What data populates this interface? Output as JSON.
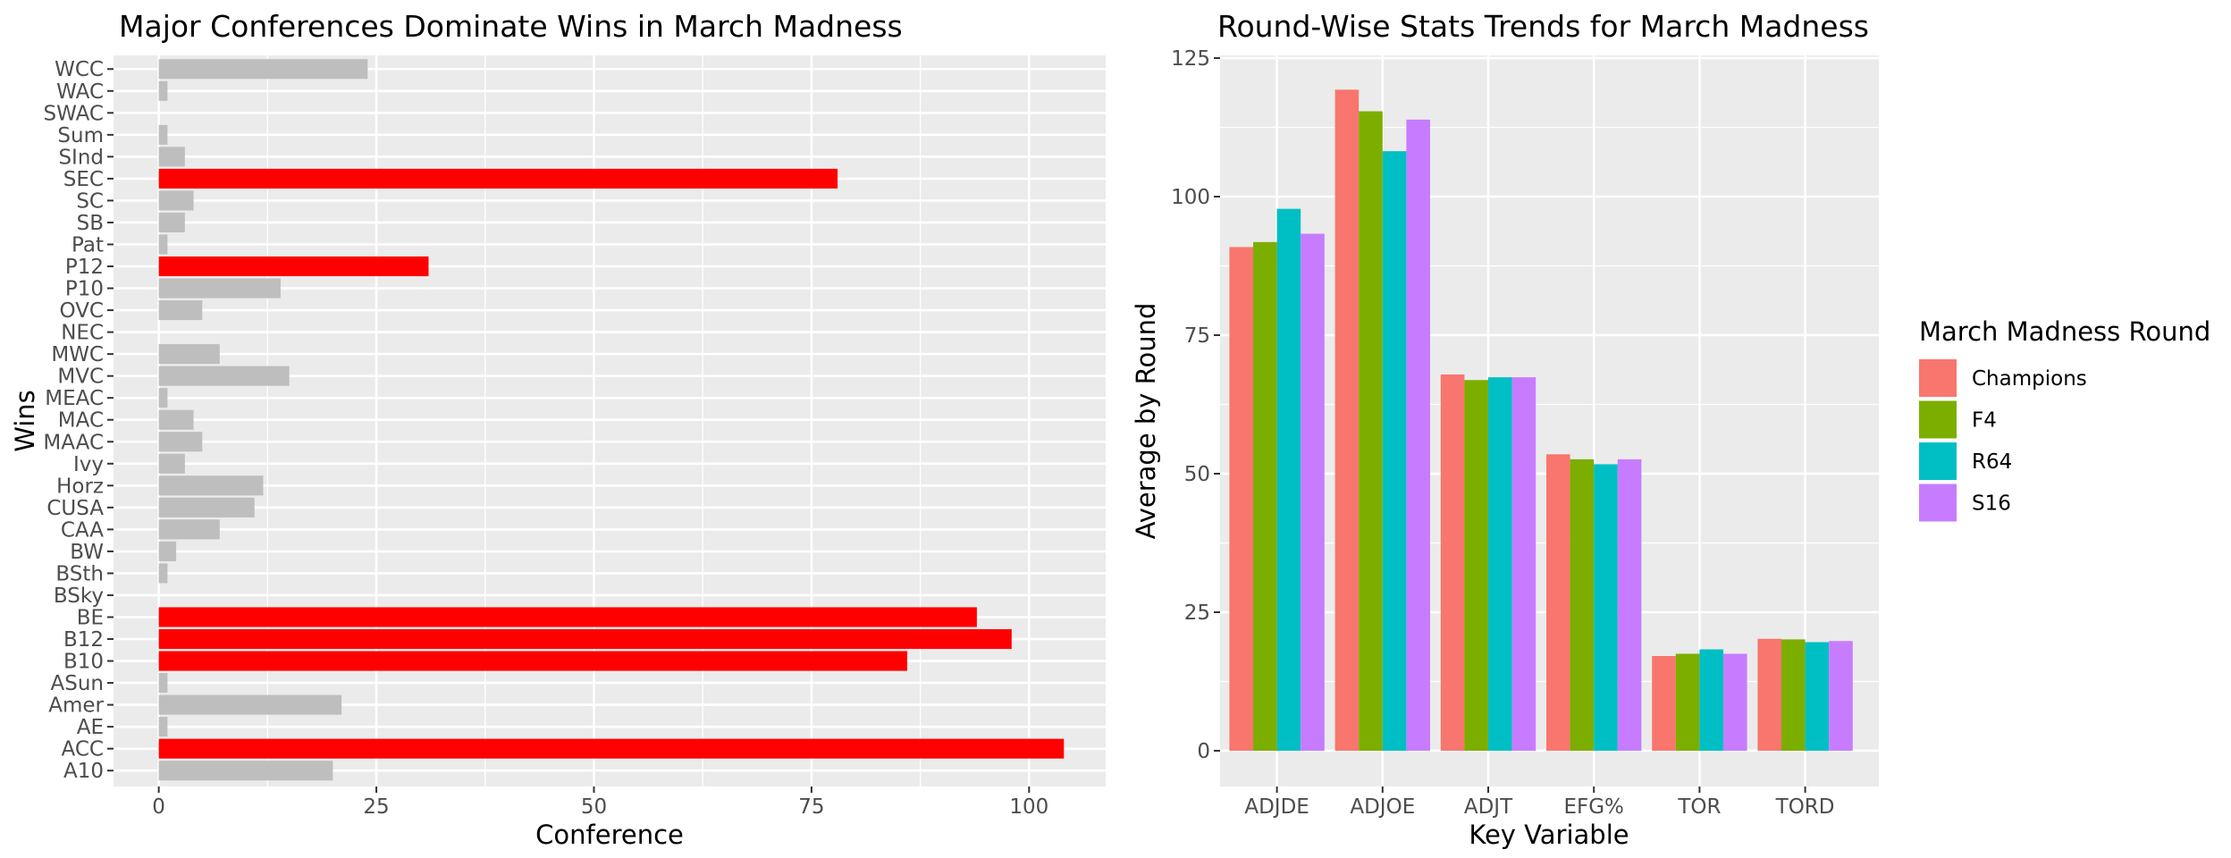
{
  "colors": {
    "panel_bg": "#EBEBEB",
    "grid": "#FFFFFF",
    "highlight": "#FF0000",
    "muted": "#BEBEBE",
    "text": "#000000",
    "tick_text": "#4D4D4D"
  },
  "chart_data": [
    {
      "type": "bar",
      "orientation": "horizontal",
      "title": "Major Conferences Dominate Wins in March Madness",
      "xlabel": "Conference",
      "ylabel": "Wins",
      "xlim": [
        0,
        108
      ],
      "xticks": [
        0,
        25,
        50,
        75,
        100
      ],
      "grid": true,
      "legend": "none",
      "categories": [
        "A10",
        "ACC",
        "AE",
        "Amer",
        "ASun",
        "B10",
        "B12",
        "BE",
        "BSky",
        "BSth",
        "BW",
        "CAA",
        "CUSA",
        "Horz",
        "Ivy",
        "MAAC",
        "MAC",
        "MEAC",
        "MVC",
        "MWC",
        "NEC",
        "OVC",
        "P10",
        "P12",
        "Pat",
        "SB",
        "SC",
        "SEC",
        "SInd",
        "Sum",
        "SWAC",
        "WAC",
        "WCC"
      ],
      "values": [
        20,
        104,
        1,
        21,
        1,
        86,
        98,
        94,
        0,
        1,
        2,
        7,
        11,
        12,
        3,
        5,
        4,
        1,
        15,
        7,
        0,
        5,
        14,
        31,
        1,
        3,
        4,
        78,
        3,
        1,
        0,
        1,
        24
      ],
      "highlight": [
        false,
        true,
        false,
        false,
        false,
        true,
        true,
        true,
        false,
        false,
        false,
        false,
        false,
        false,
        false,
        false,
        false,
        false,
        false,
        false,
        false,
        false,
        false,
        true,
        false,
        false,
        false,
        true,
        false,
        false,
        false,
        false,
        false
      ]
    },
    {
      "type": "bar",
      "orientation": "vertical",
      "title": "Round-Wise Stats Trends for March Madness",
      "xlabel": "Key Variable",
      "ylabel": "Average by Round",
      "ylim": [
        0,
        125
      ],
      "yticks": [
        0,
        25,
        50,
        75,
        100,
        125
      ],
      "grid": true,
      "legend_title": "March Madness Round",
      "legend_position": "right",
      "categories": [
        "ADJDE",
        "ADJOE",
        "ADJT",
        "EFG%",
        "TOR",
        "TORD"
      ],
      "series": [
        {
          "name": "Champions",
          "color": "#F8766D",
          "values": [
            90.9,
            119.3,
            67.9,
            53.5,
            17.1,
            20.2
          ]
        },
        {
          "name": "F4",
          "color": "#7CAE00",
          "values": [
            91.8,
            115.4,
            66.9,
            52.6,
            17.5,
            20.1
          ]
        },
        {
          "name": "R64",
          "color": "#00BFC4",
          "values": [
            97.8,
            108.2,
            67.4,
            51.7,
            18.3,
            19.6
          ]
        },
        {
          "name": "S16",
          "color": "#C77CFF",
          "values": [
            93.3,
            113.9,
            67.4,
            52.6,
            17.5,
            19.8
          ]
        }
      ]
    }
  ]
}
